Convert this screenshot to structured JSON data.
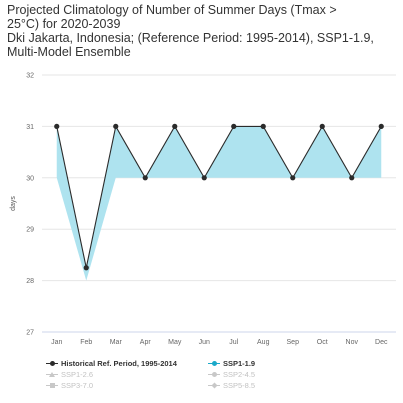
{
  "title_lines": [
    "Projected Climatology of Number of Summer Days (Tmax >",
    "25°C) for 2020-2039",
    "Dki Jakarta, Indonesia; (Reference Period: 1995-2014), SSP1-1.9,",
    "Multi-Model Ensemble"
  ],
  "colors": {
    "historical": "#2b2b2b",
    "ssp119": "#1aa9c9",
    "ssp119_fill": "#aee3ef",
    "inactive": "#c8c8c8",
    "grid": "#e6e6e6"
  },
  "legend": {
    "historical": "Historical Ref. Period, 1995-2014",
    "ssp119": "SSP1-1.9",
    "ssp126": "SSP1-2.6",
    "ssp245": "SSP2-4.5",
    "ssp370": "SSP3-7.0",
    "ssp585": "SSP5-8.5"
  },
  "chart_data": {
    "type": "line",
    "x": [
      "Jan",
      "Feb",
      "Mar",
      "Apr",
      "May",
      "Jun",
      "Jul",
      "Aug",
      "Sep",
      "Oct",
      "Nov",
      "Dec"
    ],
    "ylabel": "days",
    "ylim": [
      27,
      32
    ],
    "yticks": [
      27,
      28,
      29,
      30,
      31,
      32
    ],
    "grid": true,
    "legend_position": "bottom",
    "series": [
      {
        "name": "Historical Ref. Period, 1995-2014",
        "values": [
          31,
          28.25,
          31,
          30,
          31,
          30,
          31,
          31,
          30,
          31,
          30,
          31
        ]
      },
      {
        "name": "SSP1-1.9",
        "values": [
          30,
          28,
          30,
          30,
          30,
          30,
          30,
          30,
          30,
          30,
          30,
          30
        ]
      }
    ]
  }
}
